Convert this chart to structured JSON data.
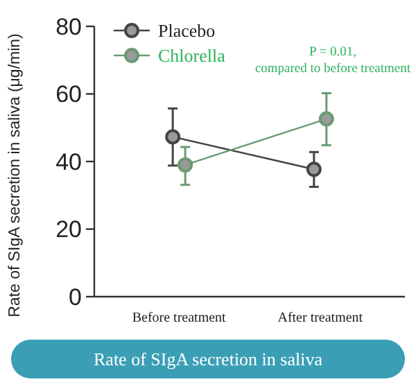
{
  "chart_data": {
    "type": "line",
    "title": "Rate of SIgA secretion in saliva",
    "ylabel": "Rate of SIgA secretion in saliva (μg/min)",
    "categories": [
      "Before treatment",
      "After treatment"
    ],
    "series": [
      {
        "name": "Placebo",
        "color": "#444444",
        "values": [
          47.3,
          37.7
        ],
        "errors": [
          [
            38.8,
            55.7
          ],
          [
            32.5,
            42.8
          ]
        ]
      },
      {
        "name": "Chlorella",
        "color": "#6a9a74",
        "values": [
          39,
          52.6
        ],
        "errors": [
          [
            33.1,
            44.3
          ],
          [
            44.8,
            60.2
          ]
        ]
      }
    ],
    "annotations": [
      "P = 0.01, compared to before treatment"
    ],
    "ylim": [
      0,
      80
    ],
    "yticks": [
      0,
      20,
      40,
      60,
      80
    ],
    "marker": "circle",
    "line_style": "solid",
    "legend": "top left",
    "grid": false
  }
}
